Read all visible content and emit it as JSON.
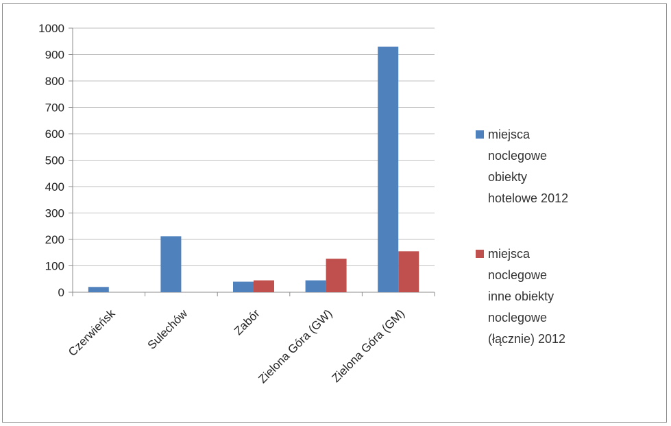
{
  "chart_data": {
    "type": "bar",
    "categories": [
      "Czerwieńsk",
      "Sulechów",
      "Zabór",
      "Zielona Góra (GW)",
      "Zielona Góra (GM)"
    ],
    "series": [
      {
        "name": "miejsca noclegowe obiekty hotelowe 2012",
        "color": "#4f81bd",
        "values": [
          20,
          212,
          40,
          45,
          930
        ]
      },
      {
        "name": "miejsca noclegowe inne obiekty noclegowe (łącznie) 2012",
        "color": "#c0504d",
        "values": [
          0,
          0,
          45,
          127,
          155
        ]
      }
    ],
    "ylim": [
      0,
      1000
    ],
    "yticks": [
      0,
      100,
      200,
      300,
      400,
      500,
      600,
      700,
      800,
      900,
      1000
    ],
    "grid": true,
    "legend_position": "right",
    "title": "",
    "xlabel": "",
    "ylabel": ""
  },
  "legend": {
    "items": [
      {
        "label": "miejsca\nnoclegowe\nobiekty\nhotelowe 2012",
        "color": "#4f81bd"
      },
      {
        "label": "miejsca\nnoclegowe\ninne obiekty\nnoclegowe\n(łącznie) 2012",
        "color": "#c0504d"
      }
    ]
  }
}
